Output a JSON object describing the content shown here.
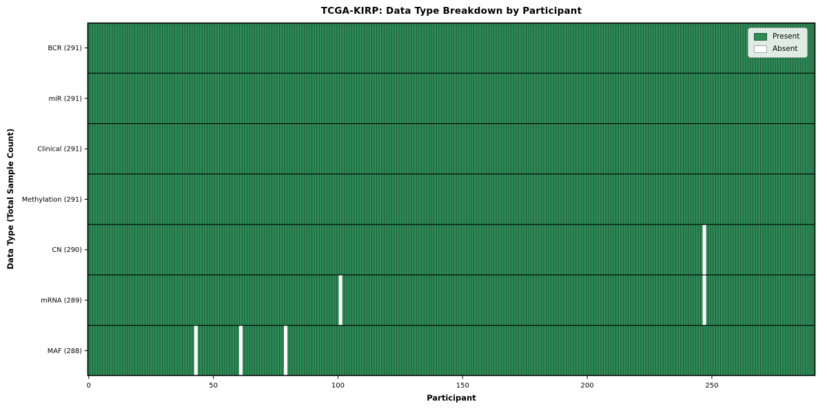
{
  "figure": {
    "title": "TCGA-KIRP: Data Type Breakdown by Participant",
    "xlabel": "Participant",
    "ylabel": "Data Type (Total Sample Count)"
  },
  "legend": {
    "items": [
      {
        "label": "Present",
        "color": "#2e8b57"
      },
      {
        "label": "Absent",
        "color": "#ffffff"
      }
    ]
  },
  "chart_data": {
    "type": "heatmap",
    "title": "TCGA-KIRP: Data Type Breakdown by Participant",
    "xlabel": "Participant",
    "ylabel": "Data Type (Total Sample Count)",
    "legend_position": "upper right",
    "legend_entries": [
      "Present",
      "Absent"
    ],
    "n_participants": 291,
    "xlim": [
      -0.5,
      291.5
    ],
    "x_ticks": [
      0,
      50,
      100,
      150,
      200,
      250
    ],
    "rows": [
      {
        "label": "BCR (291)",
        "data_type": "BCR",
        "present_count": 291,
        "absent_at": []
      },
      {
        "label": "miR (291)",
        "data_type": "miR",
        "present_count": 291,
        "absent_at": []
      },
      {
        "label": "Clinical (291)",
        "data_type": "Clinical",
        "present_count": 291,
        "absent_at": []
      },
      {
        "label": "Methylation (291)",
        "data_type": "Methylation",
        "present_count": 291,
        "absent_at": []
      },
      {
        "label": "CN (290)",
        "data_type": "CN",
        "present_count": 290,
        "absent_at": [
          247
        ]
      },
      {
        "label": "mRNA (289)",
        "data_type": "mRNA",
        "present_count": 289,
        "absent_at": [
          101,
          247
        ]
      },
      {
        "label": "MAF (288)",
        "data_type": "MAF",
        "present_count": 288,
        "absent_at": [
          43,
          61,
          79
        ]
      }
    ],
    "colors": {
      "present": "#2e8b57",
      "absent": "#ffffff",
      "bar_edge": "rgba(0,0,0,0.38)",
      "spine": "#000000"
    }
  }
}
